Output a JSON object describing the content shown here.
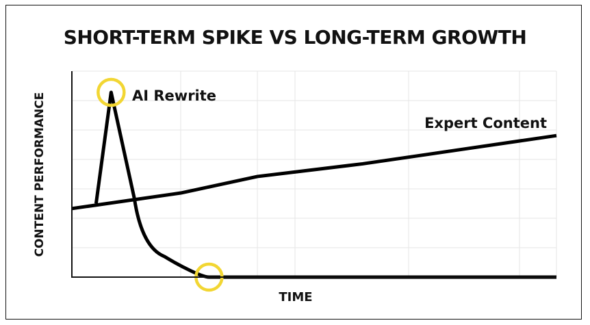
{
  "chart_data": {
    "type": "line",
    "title": "SHORT-TERM SPIKE VS LONG-TERM GROWTH",
    "xlabel": "TIME",
    "ylabel": "CONTENT PERFORMANCE",
    "xlim": [
      0,
      100
    ],
    "ylim": [
      0,
      7
    ],
    "grid": true,
    "series": [
      {
        "name": "Expert Content",
        "x": [
          0,
          22.5,
          38.3,
          60,
          80,
          100
        ],
        "y": [
          2.33,
          2.86,
          3.42,
          3.85,
          4.33,
          4.81
        ]
      },
      {
        "name": "AI Rewrite",
        "x": [
          5,
          8.1,
          12.9,
          14.9,
          19.1,
          23.3,
          28.3,
          100
        ],
        "y": [
          2.5,
          6.28,
          2.67,
          1.5,
          0.7,
          0.28,
          0,
          0
        ]
      }
    ],
    "highlights": [
      {
        "x": 8.1,
        "y": 6.28
      },
      {
        "x": 28.3,
        "y": 0
      }
    ],
    "colors": {
      "line": "#000000",
      "highlight": "#F2D633",
      "grid": "#e6e6e6"
    }
  }
}
